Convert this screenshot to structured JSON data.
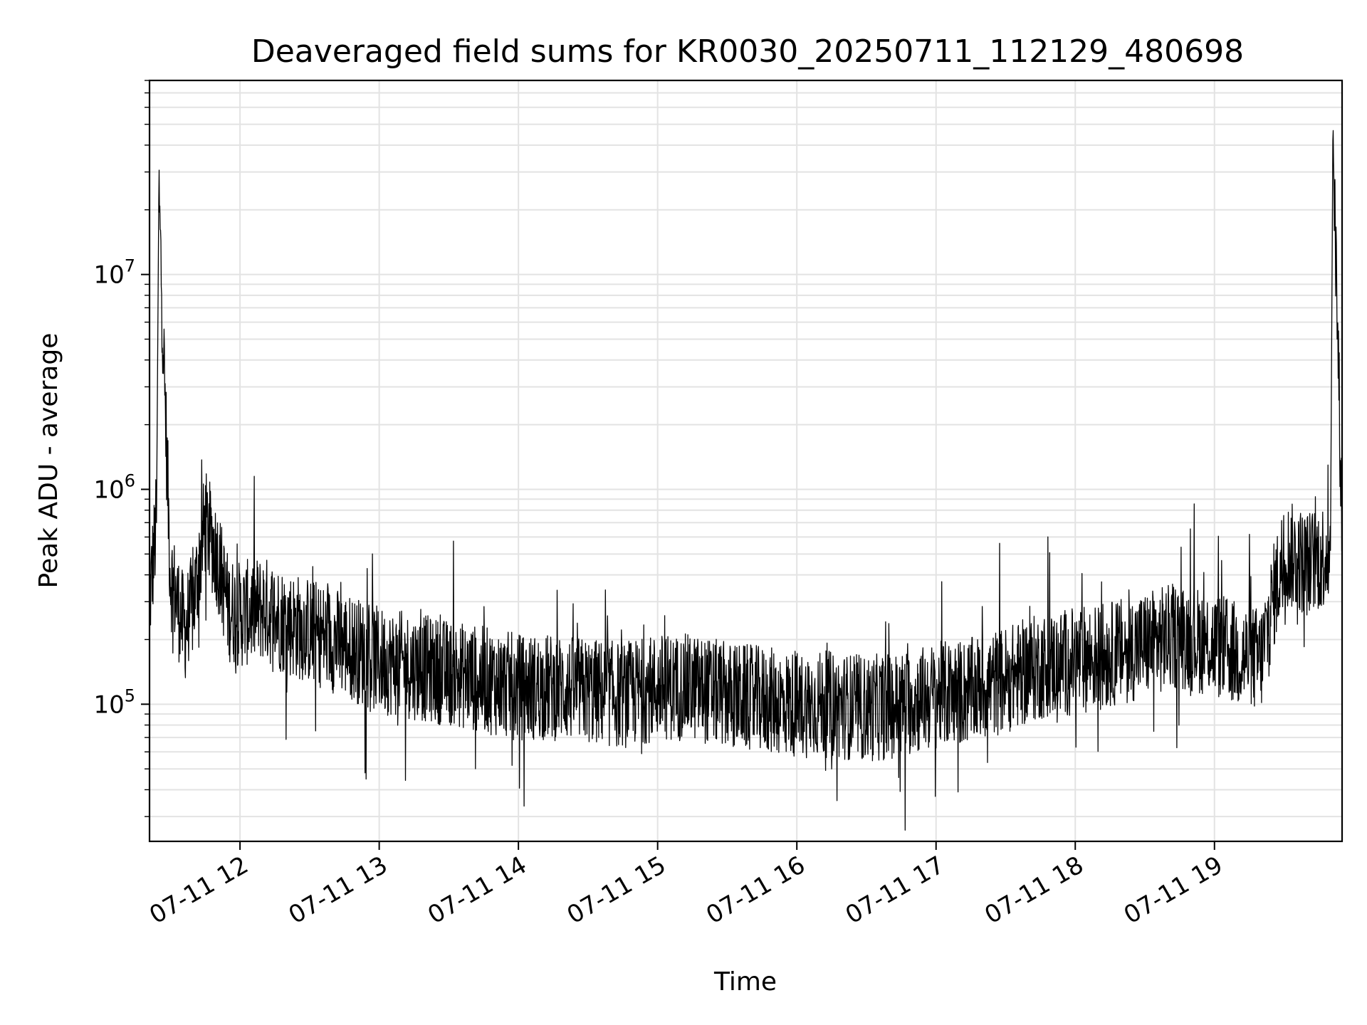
{
  "chart_data": {
    "type": "line",
    "title": "Deaveraged field sums for KR0030_20250711_112129_480698",
    "xlabel": "Time",
    "ylabel": "Peak ADU - average",
    "yscale": "log",
    "xlim": [
      "2025-07-11 11:21",
      "2025-07-11 19:55"
    ],
    "ylim": [
      23000,
      80000000
    ],
    "grid": true,
    "line_color": "#000000",
    "x_ticks": [
      "2025-07-11 12:00",
      "2025-07-11 13:00",
      "2025-07-11 14:00",
      "2025-07-11 15:00",
      "2025-07-11 16:00",
      "2025-07-11 17:00",
      "2025-07-11 18:00",
      "2025-07-11 19:00"
    ],
    "x_tick_labels": [
      "07-11 12",
      "07-11 13",
      "07-11 14",
      "07-11 15",
      "07-11 16",
      "07-11 17",
      "07-11 18",
      "07-11 19"
    ],
    "y_ticks": [
      100000,
      1000000,
      10000000
    ],
    "y_tick_labels": [
      {
        "base": "10",
        "exp": "5"
      },
      {
        "base": "10",
        "exp": "6"
      },
      {
        "base": "10",
        "exp": "7"
      }
    ],
    "series": [
      {
        "x": [
          "2025-07-11 11:21",
          "2025-07-11 11:24",
          "2025-07-11 11:25",
          "2025-07-11 11:30",
          "2025-07-11 11:36",
          "2025-07-11 11:40",
          "2025-07-11 11:45",
          "2025-07-11 11:50",
          "2025-07-11 11:55",
          "2025-07-11 12:00",
          "2025-07-11 12:10",
          "2025-07-11 12:20",
          "2025-07-11 12:30",
          "2025-07-11 12:45",
          "2025-07-11 13:00",
          "2025-07-11 13:15",
          "2025-07-11 13:30",
          "2025-07-11 13:45",
          "2025-07-11 14:00",
          "2025-07-11 14:15",
          "2025-07-11 14:30",
          "2025-07-11 14:45",
          "2025-07-11 15:00",
          "2025-07-11 15:15",
          "2025-07-11 15:30",
          "2025-07-11 15:45",
          "2025-07-11 16:00",
          "2025-07-11 16:15",
          "2025-07-11 16:30",
          "2025-07-11 16:45",
          "2025-07-11 17:00",
          "2025-07-11 17:15",
          "2025-07-11 17:30",
          "2025-07-11 17:45",
          "2025-07-11 18:00",
          "2025-07-11 18:15",
          "2025-07-11 18:30",
          "2025-07-11 18:45",
          "2025-07-11 19:00",
          "2025-07-11 19:10",
          "2025-07-11 19:20",
          "2025-07-11 19:25",
          "2025-07-11 19:30",
          "2025-07-11 19:35",
          "2025-07-11 19:40",
          "2025-07-11 19:45",
          "2025-07-11 19:50",
          "2025-07-11 19:51",
          "2025-07-11 19:55"
        ],
        "y": [
          300000,
          700000,
          24000000,
          400000,
          220000,
          300000,
          700000,
          500000,
          280000,
          260000,
          280000,
          240000,
          220000,
          190000,
          160000,
          150000,
          140000,
          130000,
          120000,
          120000,
          115000,
          110000,
          120000,
          120000,
          110000,
          105000,
          100000,
          100000,
          95000,
          100000,
          110000,
          115000,
          130000,
          150000,
          160000,
          170000,
          190000,
          210000,
          190000,
          170000,
          160000,
          300000,
          500000,
          480000,
          450000,
          480000,
          520000,
          55000000,
          650000
        ]
      }
    ]
  }
}
